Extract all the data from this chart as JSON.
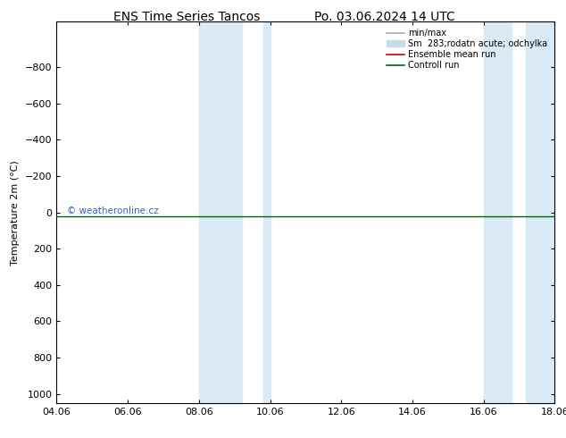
{
  "title": "ENS Time Series Tancos",
  "title2": "Po. 03.06.2024 14 UTC",
  "ylabel": "Temperature 2m (°C)",
  "ylim": [
    -1000,
    1000
  ],
  "yticks": [
    -800,
    -600,
    -400,
    -200,
    0,
    200,
    400,
    600,
    800,
    1000
  ],
  "xtick_labels": [
    "04.06",
    "06.06",
    "08.06",
    "10.06",
    "12.06",
    "14.06",
    "16.06",
    "18.06"
  ],
  "xtick_positions": [
    0,
    2,
    4,
    6,
    8,
    10,
    12,
    14
  ],
  "xlim": [
    0,
    14
  ],
  "shaded_bands": [
    {
      "x_start": 4.0,
      "x_end": 5.2
    },
    {
      "x_start": 5.8,
      "x_end": 6.0
    },
    {
      "x_start": 12.0,
      "x_end": 12.8
    },
    {
      "x_start": 13.2,
      "x_end": 14.0
    }
  ],
  "band_color": "#daeaf6",
  "line_y": 20,
  "line_color_green": "#006400",
  "watermark": "© weatheronline.cz",
  "watermark_color": "#3366cc",
  "legend_entries": [
    {
      "label": "min/max",
      "color": "#aaaaaa",
      "lw": 1.2,
      "type": "line"
    },
    {
      "label": "Sm  283;rodatn acute; odchylka",
      "color": "#c8dce8",
      "lw": 8,
      "type": "patch"
    },
    {
      "label": "Ensemble mean run",
      "color": "#cc0000",
      "lw": 1.2,
      "type": "line"
    },
    {
      "label": "Controll run",
      "color": "#006400",
      "lw": 1.2,
      "type": "line"
    }
  ],
  "bg_color": "#ffffff",
  "title_fontsize": 10,
  "tick_fontsize": 8,
  "label_fontsize": 8
}
